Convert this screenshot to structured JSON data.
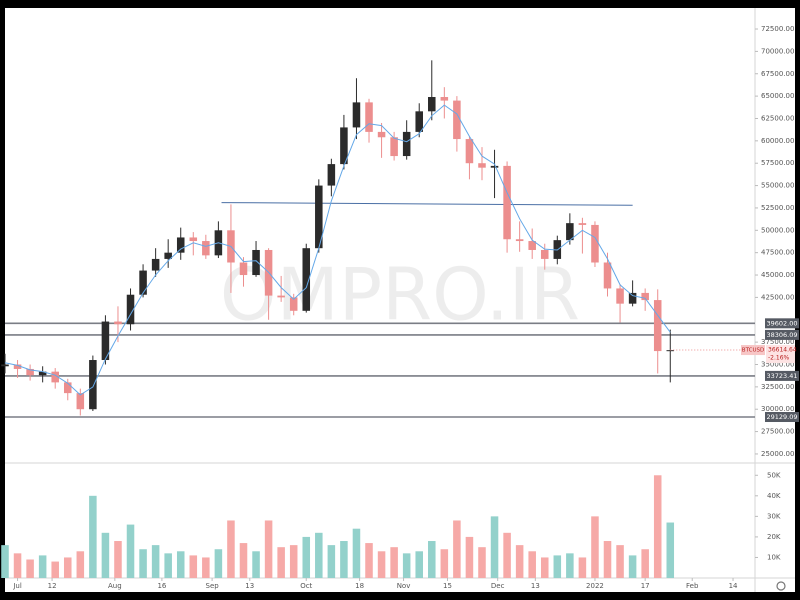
{
  "chart_data": {
    "type": "candlestick",
    "watermark": "OMPRO.IR",
    "x": [
      -4,
      0,
      4,
      8,
      12,
      16,
      20,
      24,
      28,
      32,
      36,
      40,
      44,
      48,
      52,
      56,
      60,
      64,
      68,
      72,
      76,
      80,
      84,
      88,
      92,
      96,
      100,
      104,
      108,
      112,
      116,
      120,
      124,
      128,
      132,
      136,
      140,
      144,
      148,
      152,
      156,
      160,
      164,
      168,
      172,
      176,
      180,
      184,
      188,
      192,
      196,
      200,
      204,
      208
    ],
    "open": [
      34800,
      35000,
      34500,
      33800,
      34200,
      33000,
      31800,
      30000,
      35500,
      39800,
      39500,
      42800,
      45500,
      46800,
      47500,
      49200,
      48800,
      47200,
      50000,
      46400,
      45000,
      47800,
      42700,
      42500,
      41000,
      48000,
      55000,
      57400,
      61500,
      64300,
      61000,
      60400,
      58300,
      61000,
      63300,
      64900,
      64500,
      60200,
      57500,
      57000,
      57200,
      49000,
      48800,
      47800,
      46800,
      48900,
      50800,
      50600,
      46400,
      43500,
      41800,
      43000,
      42200,
      36500
    ],
    "high": [
      36200,
      35500,
      35000,
      34800,
      34600,
      33400,
      32300,
      36000,
      40500,
      41500,
      43500,
      46200,
      48000,
      49000,
      50300,
      49800,
      49500,
      51000,
      52900,
      47000,
      48800,
      48000,
      44900,
      42900,
      48500,
      55700,
      58000,
      62900,
      67000,
      64700,
      62000,
      61000,
      62300,
      64200,
      69000,
      66000,
      65000,
      60500,
      59300,
      59000,
      57700,
      51000,
      50200,
      48500,
      49400,
      51900,
      51400,
      51000,
      47500,
      44000,
      44400,
      43500,
      43400,
      38900
    ],
    "low": [
      34000,
      33500,
      33200,
      33000,
      32300,
      31000,
      29300,
      29800,
      35000,
      37500,
      38800,
      42500,
      44800,
      45800,
      46700,
      47200,
      46800,
      46900,
      43000,
      43700,
      44800,
      40000,
      42000,
      40500,
      40800,
      47500,
      53800,
      56800,
      60200,
      59800,
      58100,
      57800,
      57900,
      60400,
      62300,
      62500,
      58800,
      55700,
      55600,
      53600,
      47500,
      47600,
      46800,
      45600,
      46200,
      48400,
      47400,
      45900,
      42600,
      39700,
      41500,
      41000,
      34000,
      33000
    ],
    "close": [
      35000,
      34500,
      33800,
      34200,
      33000,
      31800,
      30000,
      35500,
      39800,
      39500,
      42800,
      45500,
      46800,
      47500,
      49200,
      48800,
      47200,
      50000,
      46400,
      45000,
      47800,
      42700,
      42500,
      41000,
      48000,
      55000,
      57400,
      61500,
      64300,
      61000,
      60400,
      58300,
      61000,
      63300,
      64900,
      64500,
      60200,
      57500,
      57000,
      57200,
      49000,
      48800,
      47800,
      46800,
      48900,
      50800,
      50600,
      46400,
      43500,
      41800,
      43000,
      42200,
      36500,
      36600
    ],
    "volume": [
      16000,
      12000,
      9000,
      11000,
      8000,
      10000,
      13000,
      40000,
      22000,
      18000,
      26000,
      14000,
      16000,
      12000,
      13000,
      11000,
      10000,
      14000,
      28000,
      17000,
      13000,
      28000,
      15000,
      16000,
      20000,
      22000,
      16000,
      18000,
      24000,
      17000,
      13000,
      15000,
      12000,
      13000,
      18000,
      14000,
      28000,
      20000,
      15000,
      30000,
      22000,
      16000,
      13000,
      10000,
      11000,
      12000,
      10000,
      30000,
      18000,
      16000,
      11000,
      14000,
      50000,
      27000
    ],
    "ma": {
      "color": "#64a8e8",
      "values": [
        35200,
        34900,
        34400,
        34200,
        33800,
        32900,
        31600,
        32500,
        35600,
        38200,
        40600,
        43000,
        45000,
        46600,
        47900,
        48600,
        48200,
        48600,
        48200,
        46500,
        46600,
        45300,
        43600,
        42300,
        43600,
        48000,
        53300,
        57200,
        60700,
        61900,
        61700,
        60300,
        59900,
        60800,
        62800,
        64000,
        63000,
        60500,
        58300,
        57400,
        54200,
        51300,
        48900,
        47900,
        47800,
        48900,
        50000,
        49200,
        46800,
        43900,
        42700,
        42400,
        40500,
        38600
      ]
    },
    "up_color": "#2b2b2b",
    "down_color": "#ec8e8e",
    "volume_up_color": "#93d1cb",
    "volume_down_color": "#f6a9a7",
    "xlim": [
      -4,
      235
    ],
    "xticks": [
      {
        "value": 0,
        "label": "Jul"
      },
      {
        "value": 11,
        "label": "12"
      },
      {
        "value": 31,
        "label": "Aug"
      },
      {
        "value": 46,
        "label": "16"
      },
      {
        "value": 62,
        "label": "Sep"
      },
      {
        "value": 74,
        "label": "13"
      },
      {
        "value": 92,
        "label": "Oct"
      },
      {
        "value": 109,
        "label": "18"
      },
      {
        "value": 123,
        "label": "Nov"
      },
      {
        "value": 137,
        "label": "15"
      },
      {
        "value": 153,
        "label": "Dec"
      },
      {
        "value": 165,
        "label": "13"
      },
      {
        "value": 184,
        "label": "2022"
      },
      {
        "value": 200,
        "label": "17"
      },
      {
        "value": 215,
        "label": "Feb"
      },
      {
        "value": 228,
        "label": "14"
      }
    ],
    "ylim": [
      24100,
      74850
    ],
    "yticks": [
      {
        "value": 25000,
        "label": "25000.00"
      },
      {
        "value": 27500,
        "label": "27500.00"
      },
      {
        "value": 30000,
        "label": "30000.00"
      },
      {
        "value": 32500,
        "label": "32500.00"
      },
      {
        "value": 35000,
        "label": "35000.00"
      },
      {
        "value": 37500,
        "label": "37500.00"
      },
      {
        "value": 42500,
        "label": "42500.00"
      },
      {
        "value": 45000,
        "label": "45000.00"
      },
      {
        "value": 47500,
        "label": "47500.00"
      },
      {
        "value": 50000,
        "label": "50000.00"
      },
      {
        "value": 52500,
        "label": "52500.00"
      },
      {
        "value": 55000,
        "label": "55000.00"
      },
      {
        "value": 57500,
        "label": "57500.00"
      },
      {
        "value": 60000,
        "label": "60000.00"
      },
      {
        "value": 62500,
        "label": "62500.00"
      },
      {
        "value": 65000,
        "label": "65000.00"
      },
      {
        "value": 67500,
        "label": "67500.00"
      },
      {
        "value": 70000,
        "label": "70000.00"
      },
      {
        "value": 72500,
        "label": "72500.00"
      },
      {
        "value": 75000,
        "label": "75000.00"
      }
    ],
    "volume_ylim": [
      0,
      55000
    ],
    "volume_yticks": [
      {
        "value": 10000,
        "label": "10K"
      },
      {
        "value": 20000,
        "label": "20K"
      },
      {
        "value": 30000,
        "label": "30K"
      },
      {
        "value": 40000,
        "label": "40K"
      },
      {
        "value": 50000,
        "label": "50K"
      }
    ],
    "levels": [
      {
        "value": 39602,
        "label": "39602.00"
      },
      {
        "value": 38306.09,
        "label": "38306.09"
      },
      {
        "value": 33723.41,
        "label": "33723.41"
      },
      {
        "value": 29129.09,
        "label": "29129.09"
      }
    ],
    "trendline": {
      "x": [
        65,
        196
      ],
      "y": [
        53100,
        52800
      ],
      "color": "#4a6fa5"
    },
    "last_price": {
      "symbol": "BTCUSD",
      "value": 36614.64,
      "change": "-2.16%"
    }
  }
}
